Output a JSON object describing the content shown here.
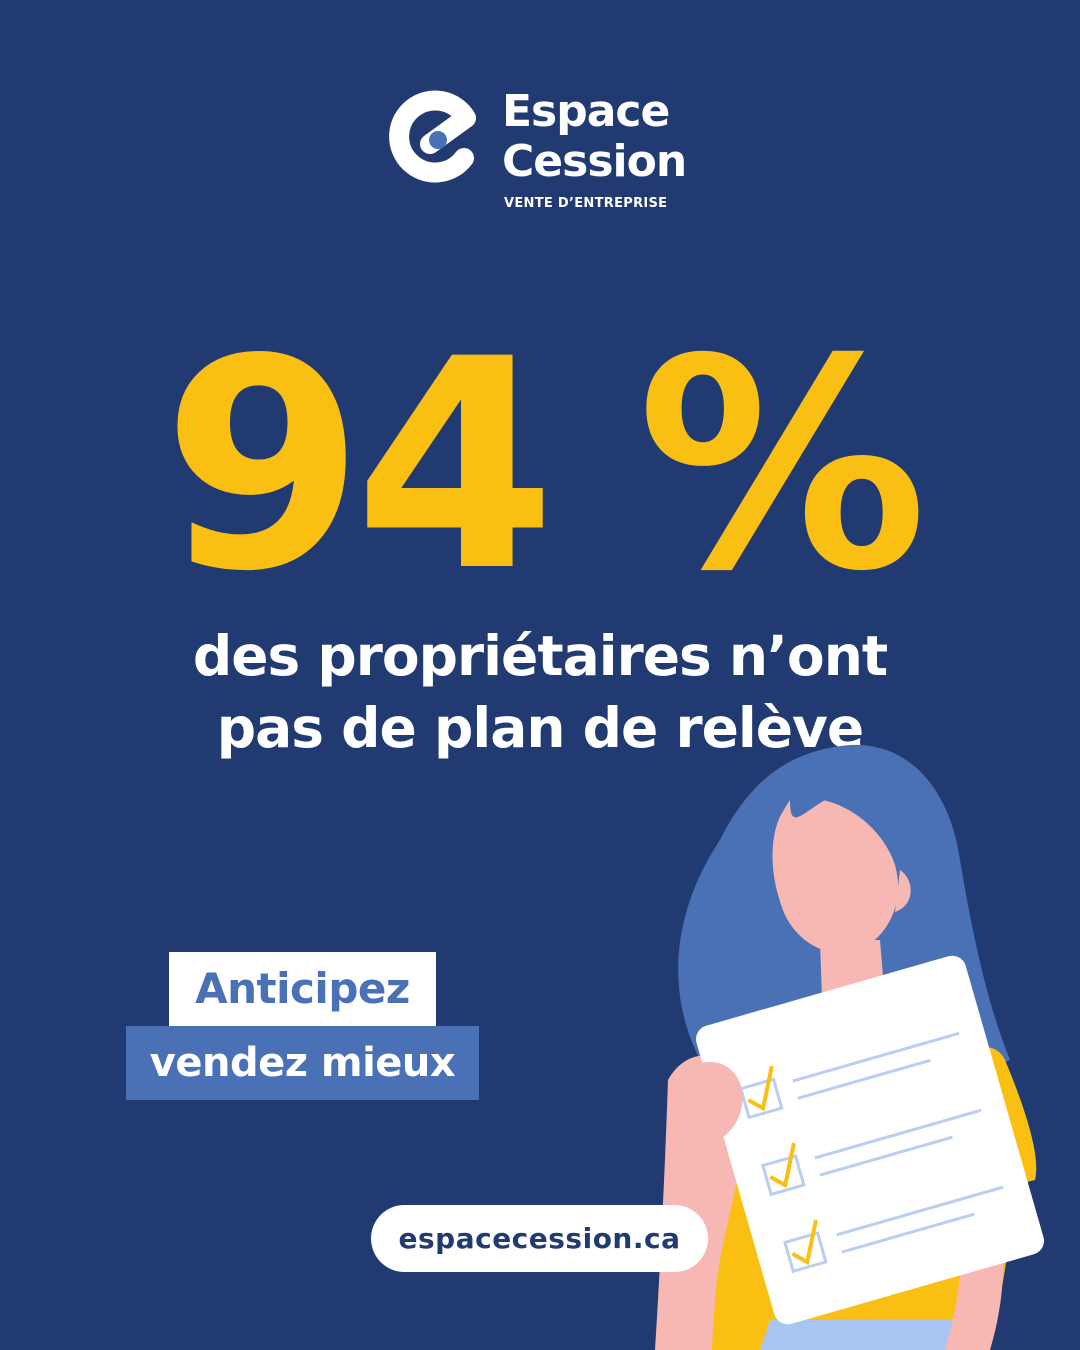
{
  "brand": {
    "name_line1": "Espace",
    "name_line2": "Cession",
    "tagline": "VENTE D’ENTREPRISE",
    "logo_icon": "e-logo-icon"
  },
  "headline": {
    "stat": "94 %",
    "line1": "des propriétaires n’ont",
    "line2": "pas de plan de relève"
  },
  "tags": {
    "line1": "Anticipez",
    "line2": "vendez mieux"
  },
  "website": "espacecession.ca",
  "illustration": {
    "subject": "woman-holding-checklist-illustration"
  },
  "colors": {
    "background": "#213b72",
    "accent_yellow": "#f9c013",
    "accent_blue": "#4a70b5",
    "white": "#ffffff"
  }
}
